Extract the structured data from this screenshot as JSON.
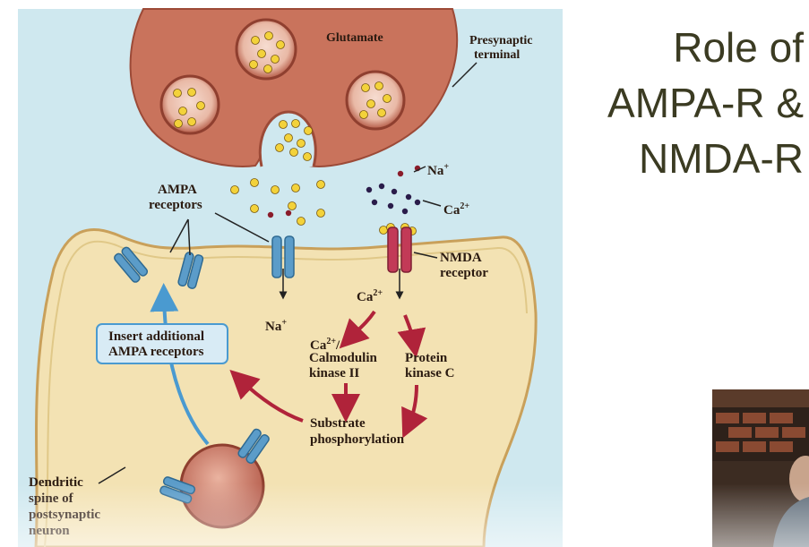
{
  "slide": {
    "title_lines": [
      "Role of",
      "AMPA-R &",
      "NMDA-R"
    ]
  },
  "diagram": {
    "labels": {
      "glutamate": "Glutamate",
      "presynaptic_line1": "Presynaptic",
      "presynaptic_line2": "terminal",
      "ampa_receptors_line1": "AMPA",
      "ampa_receptors_line2": "receptors",
      "na_top": "Na",
      "na_top_sup": "+",
      "ca_top": "Ca",
      "ca_top_sup": "2+",
      "nmda_line1": "NMDA",
      "nmda_line2": "receptor",
      "na_bottom": "Na",
      "na_bottom_sup": "+",
      "ca_mid": "Ca",
      "ca_mid_sup": "2+",
      "camk_line1_a": "Ca",
      "camk_line1_sup": "2+",
      "camk_line1_b": "/",
      "camk_line2": "Calmodulin",
      "camk_line3": "kinase II",
      "pkc_line1": "Protein",
      "pkc_line2": "kinase C",
      "insert_line1": "Insert additional",
      "insert_line2": "AMPA receptors",
      "substrate_line1": "Substrate",
      "substrate_line2": "phosphorylation",
      "dendritic_line1": "Dendritic",
      "dendritic_line2": "spine of",
      "dendritic_line3": "postsynaptic",
      "dendritic_line4": "neuron"
    },
    "colors": {
      "background": "#cfe8ef",
      "presynaptic": "#c9735c",
      "postsynaptic": "#f3e2b3",
      "glutamate_dot": "#f3d23a",
      "sodium_dot": "#8a1c2a",
      "calcium_dot": "#2a1c4a",
      "ampa_receptor": "#5b9cc9",
      "nmda_receptor": "#c23a57",
      "arrow_red": "#b0233a",
      "arrow_blue": "#4a9ad0"
    }
  }
}
